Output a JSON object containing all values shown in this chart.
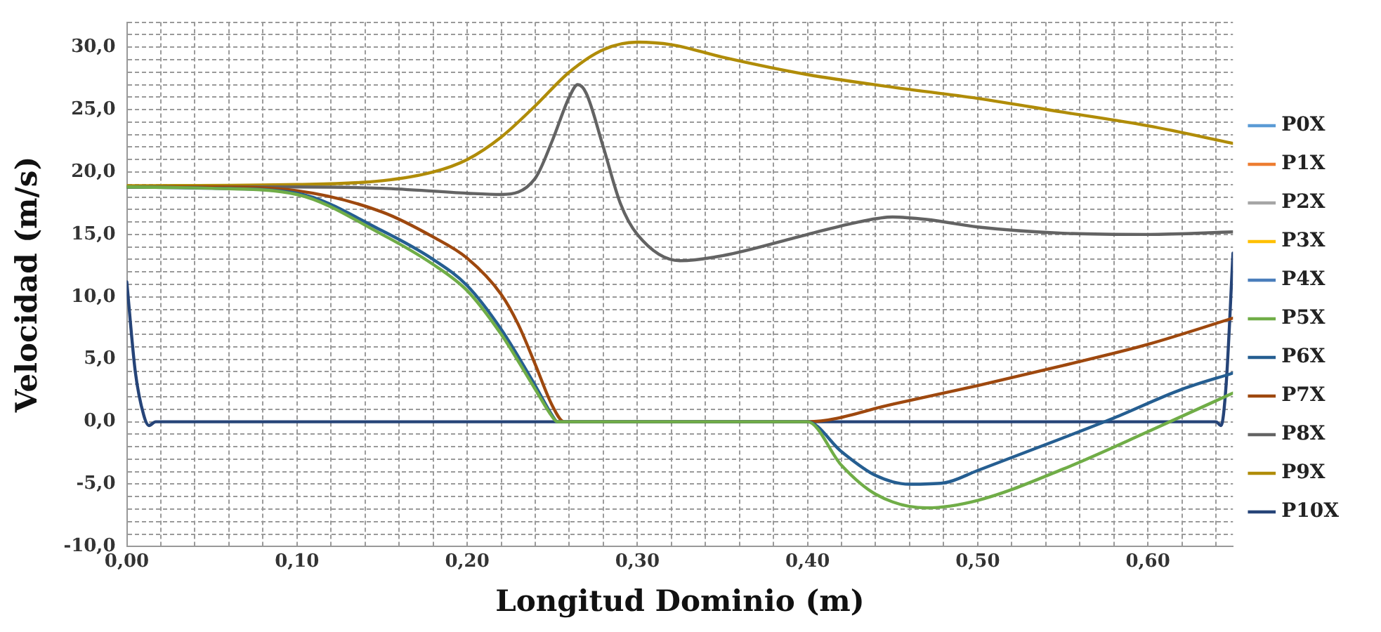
{
  "chart_data": {
    "type": "line",
    "xlabel": "Longitud Dominio (m)",
    "ylabel": "Velocidad (m/s)",
    "xlim": [
      0,
      0.65
    ],
    "ylim": [
      -10,
      32
    ],
    "xticks": [
      {
        "value": 0,
        "label": "0,00"
      },
      {
        "value": 0.02,
        "label": null
      },
      {
        "value": 0.04,
        "label": null
      },
      {
        "value": 0.06,
        "label": null
      },
      {
        "value": 0.08,
        "label": null
      },
      {
        "value": 0.1,
        "label": "0,10"
      },
      {
        "value": 0.12,
        "label": null
      },
      {
        "value": 0.14,
        "label": null
      },
      {
        "value": 0.16,
        "label": null
      },
      {
        "value": 0.18,
        "label": null
      },
      {
        "value": 0.2,
        "label": "0,20"
      },
      {
        "value": 0.22,
        "label": null
      },
      {
        "value": 0.24,
        "label": null
      },
      {
        "value": 0.26,
        "label": null
      },
      {
        "value": 0.28,
        "label": null
      },
      {
        "value": 0.3,
        "label": "0,30"
      },
      {
        "value": 0.32,
        "label": null
      },
      {
        "value": 0.34,
        "label": null
      },
      {
        "value": 0.36,
        "label": null
      },
      {
        "value": 0.38,
        "label": null
      },
      {
        "value": 0.4,
        "label": "0,40"
      },
      {
        "value": 0.42,
        "label": null
      },
      {
        "value": 0.44,
        "label": null
      },
      {
        "value": 0.46,
        "label": null
      },
      {
        "value": 0.48,
        "label": null
      },
      {
        "value": 0.5,
        "label": "0,50"
      },
      {
        "value": 0.52,
        "label": null
      },
      {
        "value": 0.54,
        "label": null
      },
      {
        "value": 0.56,
        "label": null
      },
      {
        "value": 0.58,
        "label": null
      },
      {
        "value": 0.6,
        "label": "0,60"
      },
      {
        "value": 0.62,
        "label": null
      },
      {
        "value": 0.64,
        "label": null
      }
    ],
    "yticks": [
      {
        "value": -10,
        "label": "-10,0"
      },
      {
        "value": -9,
        "label": null
      },
      {
        "value": -8,
        "label": null
      },
      {
        "value": -7,
        "label": null
      },
      {
        "value": -6,
        "label": null
      },
      {
        "value": -5,
        "label": "-5,0"
      },
      {
        "value": -4,
        "label": null
      },
      {
        "value": -3,
        "label": null
      },
      {
        "value": -2,
        "label": null
      },
      {
        "value": -1,
        "label": null
      },
      {
        "value": 0,
        "label": "0,0"
      },
      {
        "value": 1,
        "label": null
      },
      {
        "value": 2,
        "label": null
      },
      {
        "value": 3,
        "label": null
      },
      {
        "value": 4,
        "label": null
      },
      {
        "value": 5,
        "label": "5,0"
      },
      {
        "value": 6,
        "label": null
      },
      {
        "value": 7,
        "label": null
      },
      {
        "value": 8,
        "label": null
      },
      {
        "value": 9,
        "label": null
      },
      {
        "value": 10,
        "label": "10,0"
      },
      {
        "value": 11,
        "label": null
      },
      {
        "value": 12,
        "label": null
      },
      {
        "value": 13,
        "label": null
      },
      {
        "value": 14,
        "label": null
      },
      {
        "value": 15,
        "label": "15,0"
      },
      {
        "value": 16,
        "label": null
      },
      {
        "value": 17,
        "label": null
      },
      {
        "value": 18,
        "label": null
      },
      {
        "value": 19,
        "label": null
      },
      {
        "value": 20,
        "label": "20,0"
      },
      {
        "value": 21,
        "label": null
      },
      {
        "value": 22,
        "label": null
      },
      {
        "value": 23,
        "label": null
      },
      {
        "value": 24,
        "label": null
      },
      {
        "value": 25,
        "label": "25,0"
      },
      {
        "value": 26,
        "label": null
      },
      {
        "value": 27,
        "label": null
      },
      {
        "value": 28,
        "label": null
      },
      {
        "value": 29,
        "label": null
      },
      {
        "value": 30,
        "label": "30,0"
      },
      {
        "value": 31,
        "label": null
      },
      {
        "value": 32,
        "label": null
      }
    ],
    "grid": true,
    "legend": "right",
    "marker": "none",
    "line_style": "solid",
    "series": [
      {
        "name": "P0X",
        "color": "#5b9bd5"
      },
      {
        "name": "P1X",
        "color": "#ed7d31"
      },
      {
        "name": "P2X",
        "color": "#a5a5a5"
      },
      {
        "name": "P3X",
        "color": "#ffc000"
      },
      {
        "name": "P4X",
        "color": "#4a7ebb"
      },
      {
        "name": "P5X",
        "color": "#70ad47",
        "x": [
          0,
          0.05,
          0.1,
          0.15,
          0.18,
          0.2,
          0.22,
          0.24,
          0.25,
          0.253,
          0.26,
          0.4,
          0.42,
          0.44,
          0.47,
          0.5,
          0.55,
          0.6,
          0.65
        ],
        "values": [
          18.8,
          18.7,
          18.2,
          15.0,
          12.6,
          10.5,
          7.0,
          2.6,
          0.4,
          0,
          0,
          0,
          -3.5,
          -5.8,
          -6.9,
          -6.3,
          -3.8,
          -0.8,
          2.3
        ]
      },
      {
        "name": "P6X",
        "color": "#255e91",
        "x": [
          0,
          0.05,
          0.1,
          0.15,
          0.18,
          0.2,
          0.22,
          0.24,
          0.25,
          0.253,
          0.26,
          0.4,
          0.42,
          0.44,
          0.46,
          0.48,
          0.5,
          0.55,
          0.58,
          0.62,
          0.65
        ],
        "values": [
          18.8,
          18.7,
          18.3,
          15.3,
          13.0,
          10.9,
          7.4,
          2.9,
          0.5,
          0,
          0,
          0,
          -2.4,
          -4.3,
          -5.0,
          -4.9,
          -3.9,
          -1.3,
          0.3,
          2.6,
          3.9
        ]
      },
      {
        "name": "P7X",
        "color": "#9e480e",
        "x": [
          0,
          0.05,
          0.1,
          0.15,
          0.18,
          0.2,
          0.22,
          0.23,
          0.24,
          0.25,
          0.257,
          0.26,
          0.4,
          0.45,
          0.5,
          0.55,
          0.6,
          0.65
        ],
        "values": [
          18.8,
          18.8,
          18.5,
          16.8,
          14.8,
          13.1,
          10.2,
          7.8,
          4.6,
          1.3,
          0,
          0,
          0,
          1.4,
          2.9,
          4.5,
          6.2,
          8.3
        ]
      },
      {
        "name": "P8X",
        "color": "#636363",
        "x": [
          0,
          0.1,
          0.15,
          0.2,
          0.22,
          0.24,
          0.25,
          0.26,
          0.265,
          0.27,
          0.28,
          0.29,
          0.3,
          0.325,
          0.35,
          0.4,
          0.43,
          0.45,
          0.47,
          0.5,
          0.55,
          0.6,
          0.65
        ],
        "values": [
          18.8,
          18.8,
          18.7,
          18.3,
          18.2,
          19.5,
          22.5,
          26.0,
          27.0,
          26.3,
          22.0,
          17.5,
          15.0,
          12.9,
          13.3,
          15.0,
          16.0,
          16.4,
          16.2,
          15.6,
          15.1,
          15.0,
          15.2
        ]
      },
      {
        "name": "P9X",
        "color": "#b08c08",
        "x": [
          0,
          0.1,
          0.15,
          0.18,
          0.2,
          0.22,
          0.24,
          0.26,
          0.28,
          0.3,
          0.32,
          0.35,
          0.4,
          0.45,
          0.5,
          0.55,
          0.6,
          0.65
        ],
        "values": [
          18.9,
          19.0,
          19.3,
          20.0,
          21.0,
          22.8,
          25.3,
          28.0,
          29.8,
          30.4,
          30.2,
          29.2,
          27.8,
          26.8,
          25.9,
          24.8,
          23.7,
          22.3
        ]
      },
      {
        "name": "P10X",
        "color": "#264478",
        "x": [
          0,
          0.005,
          0.01,
          0.013,
          0.017,
          0.64,
          0.643,
          0.646,
          0.65
        ],
        "values": [
          11.2,
          4.0,
          0.5,
          -0.3,
          0,
          0,
          -0.3,
          3.0,
          13.5
        ]
      }
    ]
  }
}
